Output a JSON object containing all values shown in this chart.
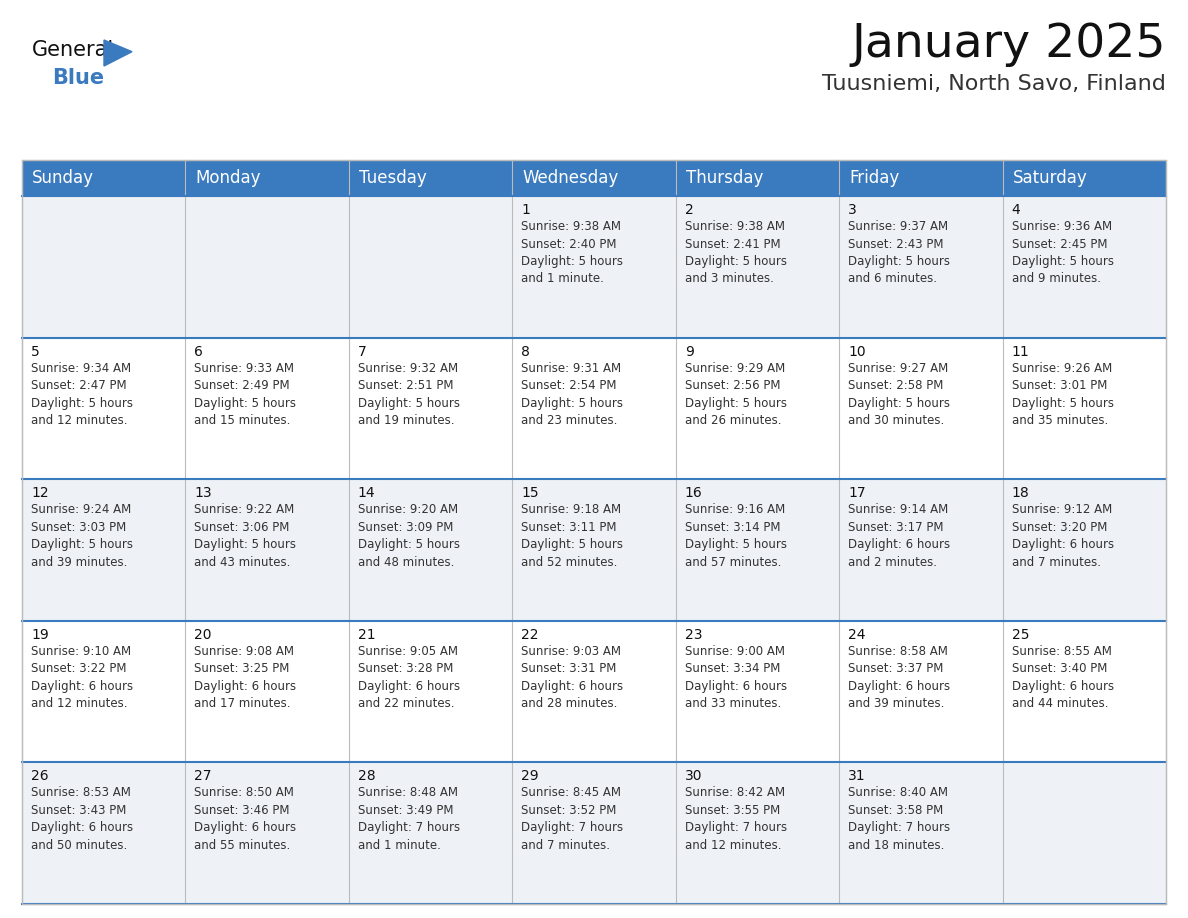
{
  "title": "January 2025",
  "subtitle": "Tuusniemi, North Savo, Finland",
  "header_color": "#3a7abf",
  "header_text_color": "#ffffff",
  "bg_color": "#ffffff",
  "cell_bg_even": "#eef2f7",
  "cell_bg_odd": "#ffffff",
  "separator_color": "#3a7abf",
  "grid_color": "#bbbbbb",
  "day_headers": [
    "Sunday",
    "Monday",
    "Tuesday",
    "Wednesday",
    "Thursday",
    "Friday",
    "Saturday"
  ],
  "title_fontsize": 34,
  "subtitle_fontsize": 16,
  "header_fontsize": 12,
  "cell_fontsize": 8.5,
  "day_num_fontsize": 10,
  "weeks": [
    [
      {
        "day": "",
        "info": ""
      },
      {
        "day": "",
        "info": ""
      },
      {
        "day": "",
        "info": ""
      },
      {
        "day": "1",
        "info": "Sunrise: 9:38 AM\nSunset: 2:40 PM\nDaylight: 5 hours\nand 1 minute."
      },
      {
        "day": "2",
        "info": "Sunrise: 9:38 AM\nSunset: 2:41 PM\nDaylight: 5 hours\nand 3 minutes."
      },
      {
        "day": "3",
        "info": "Sunrise: 9:37 AM\nSunset: 2:43 PM\nDaylight: 5 hours\nand 6 minutes."
      },
      {
        "day": "4",
        "info": "Sunrise: 9:36 AM\nSunset: 2:45 PM\nDaylight: 5 hours\nand 9 minutes."
      }
    ],
    [
      {
        "day": "5",
        "info": "Sunrise: 9:34 AM\nSunset: 2:47 PM\nDaylight: 5 hours\nand 12 minutes."
      },
      {
        "day": "6",
        "info": "Sunrise: 9:33 AM\nSunset: 2:49 PM\nDaylight: 5 hours\nand 15 minutes."
      },
      {
        "day": "7",
        "info": "Sunrise: 9:32 AM\nSunset: 2:51 PM\nDaylight: 5 hours\nand 19 minutes."
      },
      {
        "day": "8",
        "info": "Sunrise: 9:31 AM\nSunset: 2:54 PM\nDaylight: 5 hours\nand 23 minutes."
      },
      {
        "day": "9",
        "info": "Sunrise: 9:29 AM\nSunset: 2:56 PM\nDaylight: 5 hours\nand 26 minutes."
      },
      {
        "day": "10",
        "info": "Sunrise: 9:27 AM\nSunset: 2:58 PM\nDaylight: 5 hours\nand 30 minutes."
      },
      {
        "day": "11",
        "info": "Sunrise: 9:26 AM\nSunset: 3:01 PM\nDaylight: 5 hours\nand 35 minutes."
      }
    ],
    [
      {
        "day": "12",
        "info": "Sunrise: 9:24 AM\nSunset: 3:03 PM\nDaylight: 5 hours\nand 39 minutes."
      },
      {
        "day": "13",
        "info": "Sunrise: 9:22 AM\nSunset: 3:06 PM\nDaylight: 5 hours\nand 43 minutes."
      },
      {
        "day": "14",
        "info": "Sunrise: 9:20 AM\nSunset: 3:09 PM\nDaylight: 5 hours\nand 48 minutes."
      },
      {
        "day": "15",
        "info": "Sunrise: 9:18 AM\nSunset: 3:11 PM\nDaylight: 5 hours\nand 52 minutes."
      },
      {
        "day": "16",
        "info": "Sunrise: 9:16 AM\nSunset: 3:14 PM\nDaylight: 5 hours\nand 57 minutes."
      },
      {
        "day": "17",
        "info": "Sunrise: 9:14 AM\nSunset: 3:17 PM\nDaylight: 6 hours\nand 2 minutes."
      },
      {
        "day": "18",
        "info": "Sunrise: 9:12 AM\nSunset: 3:20 PM\nDaylight: 6 hours\nand 7 minutes."
      }
    ],
    [
      {
        "day": "19",
        "info": "Sunrise: 9:10 AM\nSunset: 3:22 PM\nDaylight: 6 hours\nand 12 minutes."
      },
      {
        "day": "20",
        "info": "Sunrise: 9:08 AM\nSunset: 3:25 PM\nDaylight: 6 hours\nand 17 minutes."
      },
      {
        "day": "21",
        "info": "Sunrise: 9:05 AM\nSunset: 3:28 PM\nDaylight: 6 hours\nand 22 minutes."
      },
      {
        "day": "22",
        "info": "Sunrise: 9:03 AM\nSunset: 3:31 PM\nDaylight: 6 hours\nand 28 minutes."
      },
      {
        "day": "23",
        "info": "Sunrise: 9:00 AM\nSunset: 3:34 PM\nDaylight: 6 hours\nand 33 minutes."
      },
      {
        "day": "24",
        "info": "Sunrise: 8:58 AM\nSunset: 3:37 PM\nDaylight: 6 hours\nand 39 minutes."
      },
      {
        "day": "25",
        "info": "Sunrise: 8:55 AM\nSunset: 3:40 PM\nDaylight: 6 hours\nand 44 minutes."
      }
    ],
    [
      {
        "day": "26",
        "info": "Sunrise: 8:53 AM\nSunset: 3:43 PM\nDaylight: 6 hours\nand 50 minutes."
      },
      {
        "day": "27",
        "info": "Sunrise: 8:50 AM\nSunset: 3:46 PM\nDaylight: 6 hours\nand 55 minutes."
      },
      {
        "day": "28",
        "info": "Sunrise: 8:48 AM\nSunset: 3:49 PM\nDaylight: 7 hours\nand 1 minute."
      },
      {
        "day": "29",
        "info": "Sunrise: 8:45 AM\nSunset: 3:52 PM\nDaylight: 7 hours\nand 7 minutes."
      },
      {
        "day": "30",
        "info": "Sunrise: 8:42 AM\nSunset: 3:55 PM\nDaylight: 7 hours\nand 12 minutes."
      },
      {
        "day": "31",
        "info": "Sunrise: 8:40 AM\nSunset: 3:58 PM\nDaylight: 7 hours\nand 18 minutes."
      },
      {
        "day": "",
        "info": ""
      }
    ]
  ]
}
